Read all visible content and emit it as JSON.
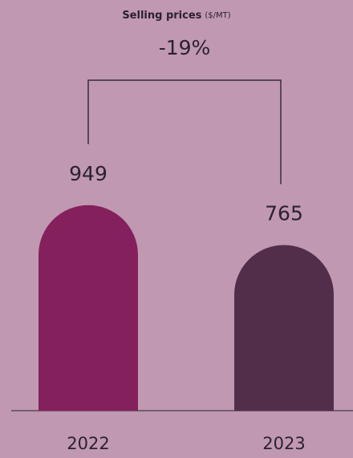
{
  "chart_data": {
    "type": "bar",
    "title": "Selling prices",
    "unit": "($/MT)",
    "categories": [
      "2022",
      "2023"
    ],
    "values": [
      949,
      765
    ],
    "colors": [
      "#84205c",
      "#532e4a"
    ],
    "annotation": "-19%"
  }
}
